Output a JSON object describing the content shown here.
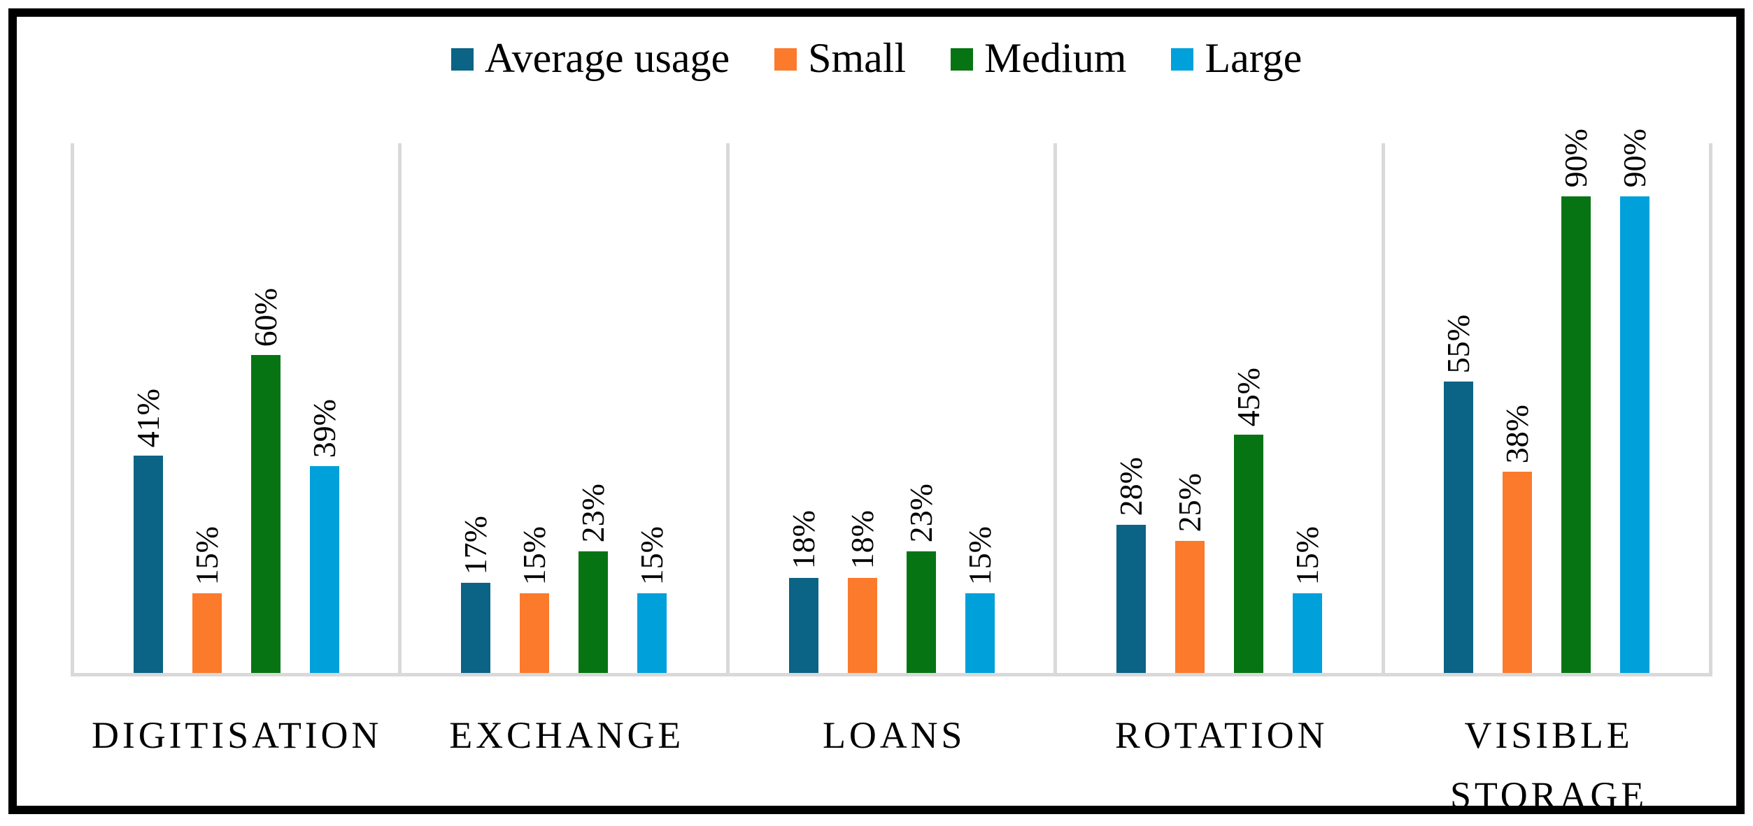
{
  "chart_data": {
    "type": "bar",
    "title": "",
    "xlabel": "",
    "ylabel": "",
    "ylim": [
      0,
      100
    ],
    "value_suffix": "%",
    "grid": "vertical-category-dividers",
    "legend_position": "top-center",
    "data_label_rotation": "90deg-bottom-to-top",
    "categories": [
      "DIGITISATION",
      "EXCHANGE",
      "LOANS",
      "ROTATION",
      "VISIBLE STORAGE"
    ],
    "series": [
      {
        "name": "Average usage",
        "color": "#0B6385",
        "values": [
          41,
          17,
          18,
          28,
          55
        ]
      },
      {
        "name": "Small",
        "color": "#FB7A2C",
        "values": [
          15,
          15,
          18,
          25,
          38
        ]
      },
      {
        "name": "Medium",
        "color": "#077414",
        "values": [
          60,
          23,
          23,
          45,
          90
        ]
      },
      {
        "name": "Large",
        "color": "#00A0DB",
        "values": [
          39,
          15,
          15,
          15,
          90
        ]
      }
    ],
    "data_labels": {
      "DIGITISATION": [
        "41%",
        "15%",
        "60%",
        "39%"
      ],
      "EXCHANGE": [
        "17%",
        "15%",
        "23%",
        "15%"
      ],
      "LOANS": [
        "18%",
        "18%",
        "23%",
        "15%"
      ],
      "ROTATION": [
        "28%",
        "25%",
        "45%",
        "15%"
      ],
      "VISIBLE STORAGE": [
        "55%",
        "38%",
        "90%",
        "90%"
      ]
    },
    "colors": {
      "frame_border": "#000000",
      "gridline": "#d9d9d9",
      "text": "#000000",
      "background": "#ffffff"
    }
  }
}
